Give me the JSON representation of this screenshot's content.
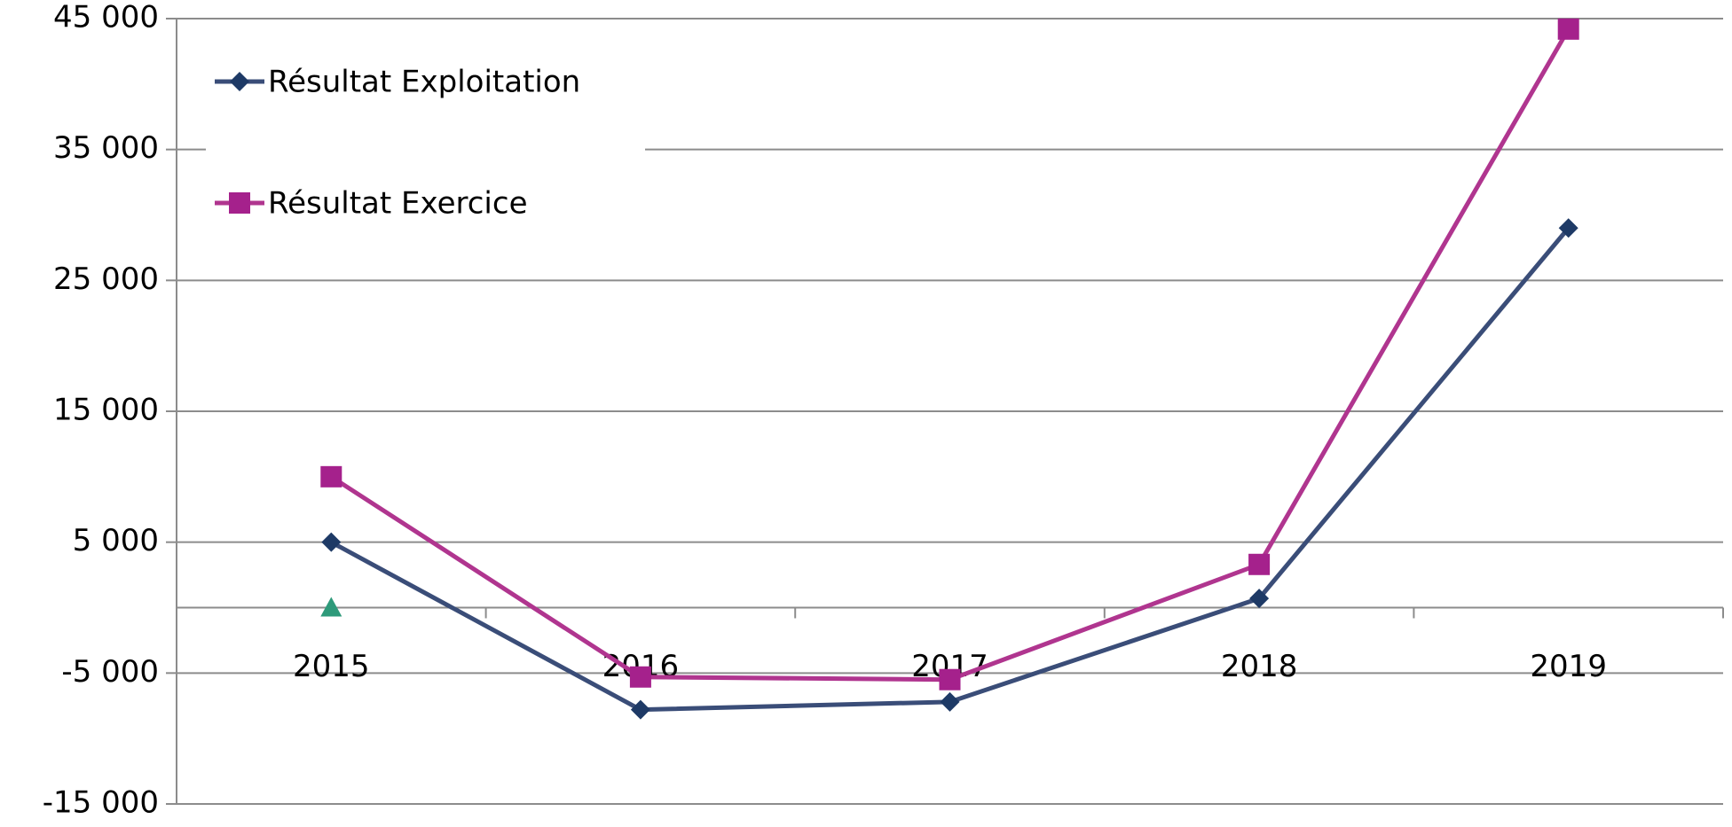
{
  "chart_data": {
    "type": "line",
    "categories": [
      "2015",
      "2016",
      "2017",
      "2018",
      "2019"
    ],
    "series": [
      {
        "name": "Résultat Exploitation",
        "color": "#3a4d78",
        "marker": "diamond",
        "marker_color": "#1e3a66",
        "values": [
          5000,
          -7800,
          -7200,
          700,
          29000
        ]
      },
      {
        "name": "Résultat Exercice",
        "color": "#b0358f",
        "marker": "square",
        "marker_color": "#a5218c",
        "values": [
          10000,
          -5300,
          -5500,
          3300,
          44200
        ]
      },
      {
        "color": "#2e9a7a",
        "marker": "triangle",
        "marker_color": "#2e9a7a",
        "values": [
          0,
          null,
          null,
          null,
          null
        ]
      }
    ],
    "ylim": [
      -15000,
      45000
    ],
    "yticks": [
      {
        "value": -15000,
        "label": "-15 000"
      },
      {
        "value": -5000,
        "label": "-5 000"
      },
      {
        "value": 5000,
        "label": "5 000"
      },
      {
        "value": 15000,
        "label": "15 000"
      },
      {
        "value": 25000,
        "label": "25 000"
      },
      {
        "value": 35000,
        "label": "35 000"
      },
      {
        "value": 45000,
        "label": "45 000"
      }
    ],
    "grid": true,
    "legend": "top-left"
  }
}
